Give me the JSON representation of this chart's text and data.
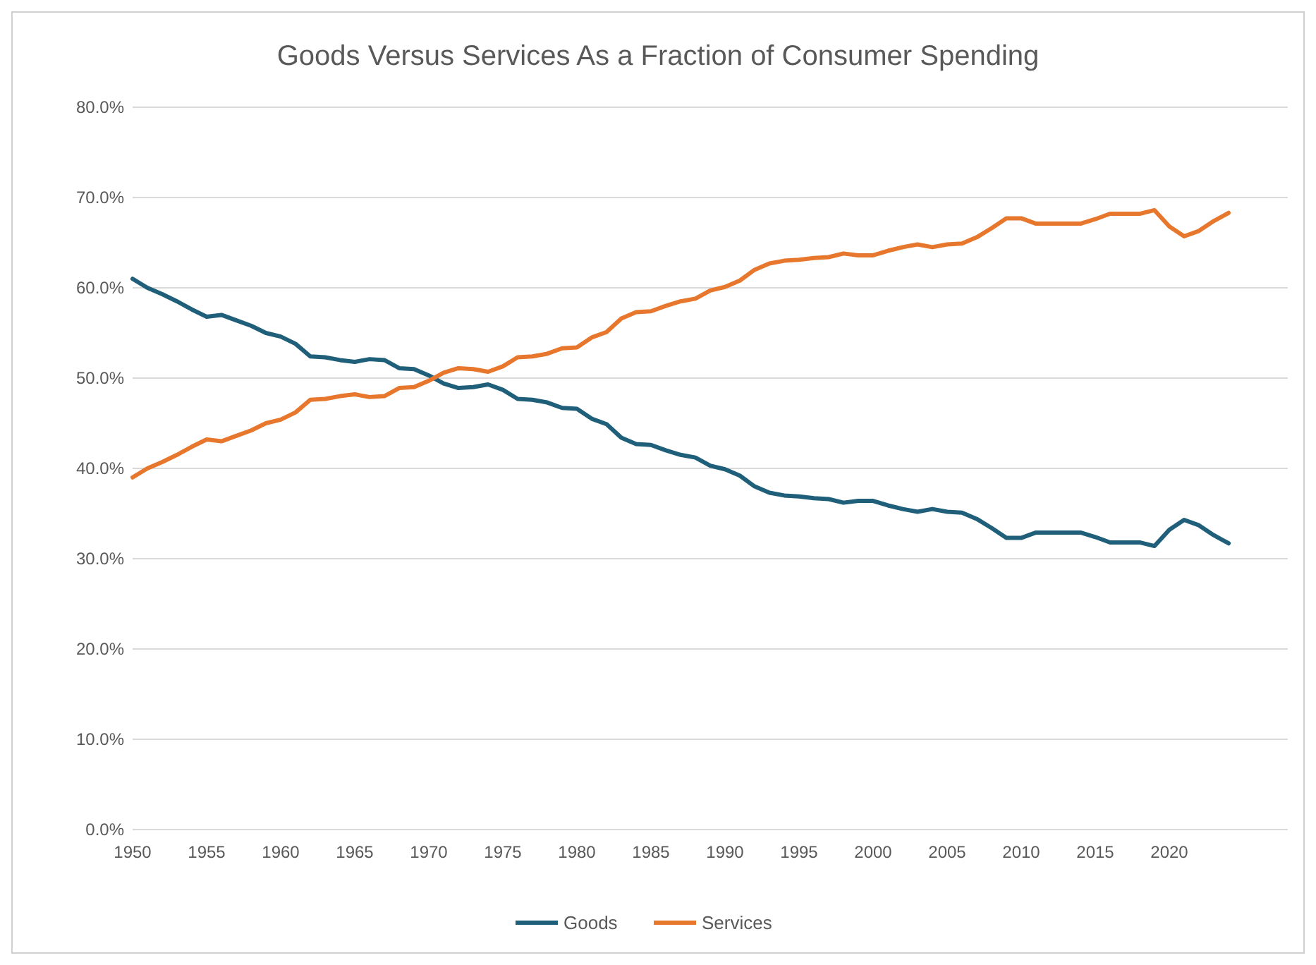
{
  "chart_data": {
    "type": "line",
    "title": "Goods Versus Services As a Fraction of Consumer Spending",
    "x": [
      1950,
      1951,
      1952,
      1953,
      1954,
      1955,
      1956,
      1957,
      1958,
      1959,
      1960,
      1961,
      1962,
      1963,
      1964,
      1965,
      1966,
      1967,
      1968,
      1969,
      1970,
      1971,
      1972,
      1973,
      1974,
      1975,
      1976,
      1977,
      1978,
      1979,
      1980,
      1981,
      1982,
      1983,
      1984,
      1985,
      1986,
      1987,
      1988,
      1989,
      1990,
      1991,
      1992,
      1993,
      1994,
      1995,
      1996,
      1997,
      1998,
      1999,
      2000,
      2001,
      2002,
      2003,
      2004,
      2005,
      2006,
      2007,
      2008,
      2009,
      2010,
      2011,
      2012,
      2013,
      2014,
      2015,
      2016,
      2017,
      2018,
      2019,
      2020,
      2021,
      2022,
      2023,
      2024
    ],
    "series": [
      {
        "name": "Goods",
        "color": "#1f5f7a",
        "values": [
          61.0,
          60.0,
          59.3,
          58.5,
          57.6,
          56.8,
          57.0,
          56.4,
          55.8,
          55.0,
          54.6,
          53.8,
          52.4,
          52.3,
          52.0,
          51.8,
          52.1,
          52.0,
          51.1,
          51.0,
          50.3,
          49.4,
          48.9,
          49.0,
          49.3,
          48.7,
          47.7,
          47.6,
          47.3,
          46.7,
          46.6,
          45.5,
          44.9,
          43.4,
          42.7,
          42.6,
          42.0,
          41.5,
          41.2,
          40.3,
          39.9,
          39.2,
          38.0,
          37.3,
          37.0,
          36.9,
          36.7,
          36.6,
          36.2,
          36.4,
          36.4,
          35.9,
          35.5,
          35.2,
          35.5,
          35.2,
          35.1,
          34.4,
          33.4,
          32.3,
          32.3,
          32.9,
          32.9,
          32.9,
          32.9,
          32.4,
          31.8,
          31.8,
          31.8,
          31.4,
          33.2,
          34.3,
          33.7,
          32.6,
          31.7
        ]
      },
      {
        "name": "Services",
        "color": "#e8772e",
        "values": [
          39.0,
          40.0,
          40.7,
          41.5,
          42.4,
          43.2,
          43.0,
          43.6,
          44.2,
          45.0,
          45.4,
          46.2,
          47.6,
          47.7,
          48.0,
          48.2,
          47.9,
          48.0,
          48.9,
          49.0,
          49.7,
          50.6,
          51.1,
          51.0,
          50.7,
          51.3,
          52.3,
          52.4,
          52.7,
          53.3,
          53.4,
          54.5,
          55.1,
          56.6,
          57.3,
          57.4,
          58.0,
          58.5,
          58.8,
          59.7,
          60.1,
          60.8,
          62.0,
          62.7,
          63.0,
          63.1,
          63.3,
          63.4,
          63.8,
          63.6,
          63.6,
          64.1,
          64.5,
          64.8,
          64.5,
          64.8,
          64.9,
          65.6,
          66.6,
          67.7,
          67.7,
          67.1,
          67.1,
          67.1,
          67.1,
          67.6,
          68.2,
          68.2,
          68.2,
          68.6,
          66.8,
          65.7,
          66.3,
          67.4,
          68.3
        ]
      }
    ],
    "xlim": [
      1950,
      2028
    ],
    "xticks": [
      1950,
      1955,
      1960,
      1965,
      1970,
      1975,
      1980,
      1985,
      1990,
      1995,
      2000,
      2005,
      2010,
      2015,
      2020
    ],
    "ylim": [
      0,
      80
    ],
    "yticks": [
      {
        "value": 0,
        "label": "0.0%"
      },
      {
        "value": 10,
        "label": "10.0%"
      },
      {
        "value": 20,
        "label": "20.0%"
      },
      {
        "value": 30,
        "label": "30.0%"
      },
      {
        "value": 40,
        "label": "40.0%"
      },
      {
        "value": 50,
        "label": "50.0%"
      },
      {
        "value": 60,
        "label": "60.0%"
      },
      {
        "value": 70,
        "label": "70.0%"
      },
      {
        "value": 80,
        "label": "80.0%"
      }
    ],
    "grid": "y",
    "legend": "bottom",
    "marker": "none",
    "line_style": "solid"
  }
}
